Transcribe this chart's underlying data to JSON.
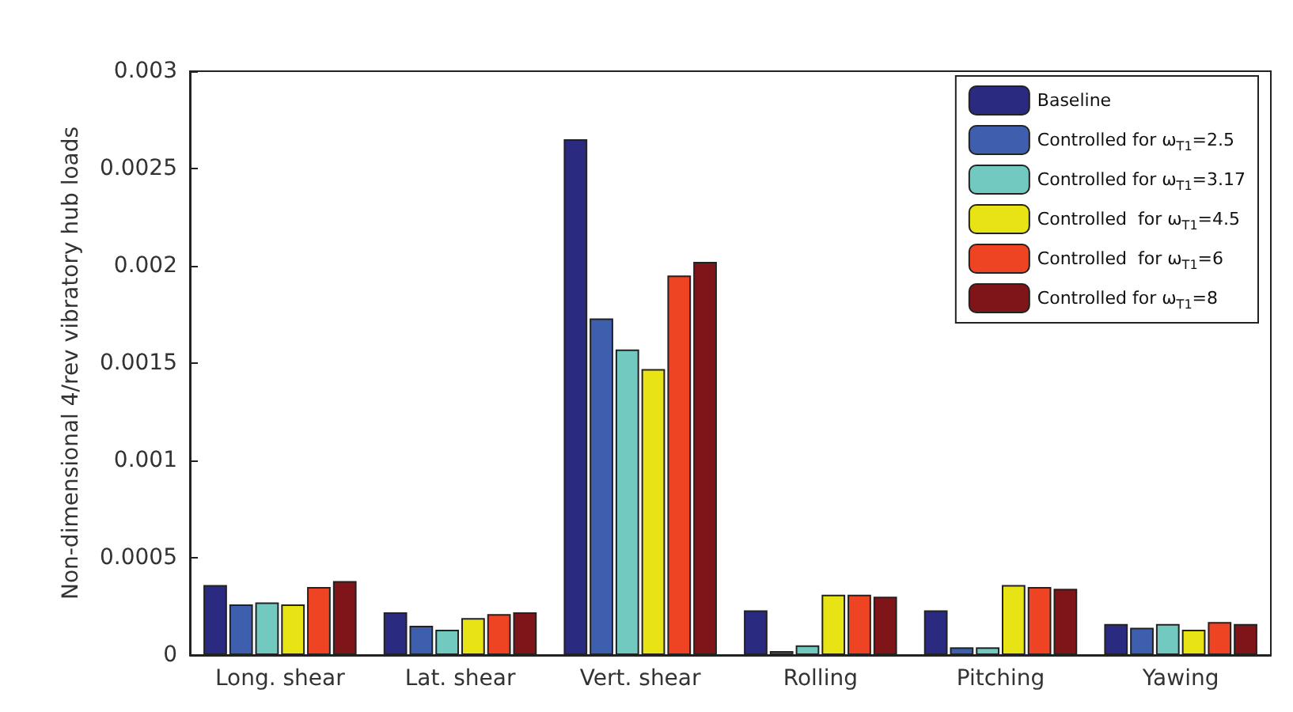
{
  "chart_data": {
    "type": "bar",
    "ylabel": "Non-dimensional 4/rev vibratory hub loads",
    "categories": [
      "Long. shear",
      "Lat. shear",
      "Vert. shear",
      "Rolling",
      "Pitching",
      "Yawing"
    ],
    "series": [
      {
        "name": "Baseline",
        "color": "#2a2a80",
        "values": [
          0.00036,
          0.00022,
          0.00265,
          0.00023,
          0.00023,
          0.00016
        ]
      },
      {
        "name": "Controlled for ω$_{T1}$=2.5",
        "color": "#3d5fad",
        "values": [
          0.00026,
          0.00015,
          0.00173,
          2e-05,
          4e-05,
          0.00014
        ]
      },
      {
        "name": "Controlled for ω$_{T1}$=3.17",
        "color": "#72c9c0",
        "values": [
          0.00027,
          0.00013,
          0.00157,
          5e-05,
          4e-05,
          0.00016
        ]
      },
      {
        "name": "Controlled  for ω$_{T1}$=4.5",
        "color": "#e8e314",
        "values": [
          0.00026,
          0.00019,
          0.00147,
          0.00031,
          0.00036,
          0.00013
        ]
      },
      {
        "name": "Controlled  for ω$_{T1}$=6",
        "color": "#ee4423",
        "values": [
          0.00035,
          0.00021,
          0.00195,
          0.00031,
          0.00035,
          0.00017
        ]
      },
      {
        "name": "Controlled for ω$_{T1}$=8",
        "color": "#7f1518",
        "values": [
          0.00038,
          0.00022,
          0.00202,
          0.0003,
          0.00034,
          0.00016
        ]
      }
    ],
    "ylim": [
      0,
      0.003
    ],
    "yticks": [
      0,
      0.0005,
      0.001,
      0.0015,
      0.002,
      0.0025,
      0.003
    ],
    "grid": false,
    "legend": "top right"
  }
}
